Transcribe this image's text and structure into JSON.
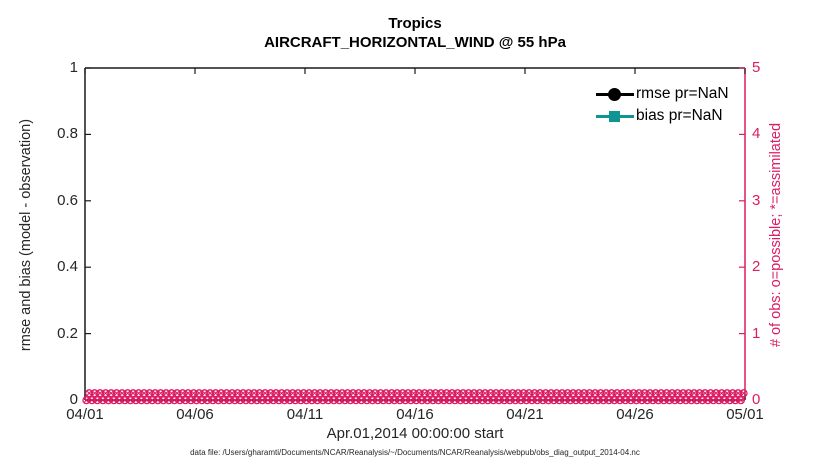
{
  "figure": {
    "title": "Tropics",
    "subtitle": "AIRCRAFT_HORIZONTAL_WIND @ 55 hPa",
    "xlabel": "Apr.01,2014 00:00:00 start",
    "ylabel_left": "rmse and bias (model - observation)",
    "ylabel_right": "# of obs: o=possible; *=assimilated",
    "footnote": "data file: /Users/gharamti/Documents/NCAR/Reanalysis/~/Documents/NCAR/Reanalysis/webpub/obs_diag_output_2014-04.nc"
  },
  "legend": {
    "items": [
      {
        "label": "rmse pr=NaN",
        "color": "#000000",
        "marker": "filled-circle"
      },
      {
        "label": "bias pr=NaN",
        "color": "#0f9494",
        "marker": "filled-square"
      }
    ]
  },
  "colors": {
    "left_axis": "#1a1a1a",
    "right_axis": "#dd1c64",
    "rmse": "#000000",
    "bias": "#0f9494",
    "obs_markers": "#dd1c64",
    "background": "#ffffff"
  },
  "chart_data": {
    "type": "line",
    "title": "Tropics",
    "subtitle": "AIRCRAFT_HORIZONTAL_WIND @ 55 hPa",
    "xlabel": "Apr.01,2014 00:00:00 start",
    "ylabel_left": "rmse and bias (model - observation)",
    "ylabel_right": "# of obs: o=possible; *=assimilated",
    "x_ticks": [
      "04/01",
      "04/06",
      "04/11",
      "04/16",
      "04/21",
      "04/26",
      "05/01"
    ],
    "x_range_days": [
      0,
      30
    ],
    "y_left_ticks": [
      "0",
      "0.2",
      "0.4",
      "0.6",
      "0.8",
      "1"
    ],
    "y_left_range": [
      0,
      1
    ],
    "y_right_ticks": [
      "0",
      "1",
      "2",
      "3",
      "4",
      "5"
    ],
    "y_right_range": [
      0,
      5
    ],
    "grid": false,
    "legend_position": "top-right-inside",
    "series": [
      {
        "name": "rmse pr=NaN",
        "axis": "left",
        "color": "#000000",
        "marker": "filled-circle",
        "values": null,
        "note": "pr=NaN — no curve drawn"
      },
      {
        "name": "bias pr=NaN",
        "axis": "left",
        "color": "#0f9494",
        "marker": "filled-square",
        "values": null,
        "note": "pr=NaN — no curve drawn"
      },
      {
        "name": "# of obs possible (o)",
        "axis": "right",
        "color": "#dd1c64",
        "marker": "o",
        "constant_value": 0,
        "points": 120
      },
      {
        "name": "# of obs assimilated (x)",
        "axis": "right",
        "color": "#dd1c64",
        "marker": "x",
        "constant_value": 0,
        "points": 120
      }
    ],
    "obs_band": {
      "rows": 2,
      "markers_per_row": 120,
      "value": 0,
      "color": "#dd1c64"
    }
  }
}
